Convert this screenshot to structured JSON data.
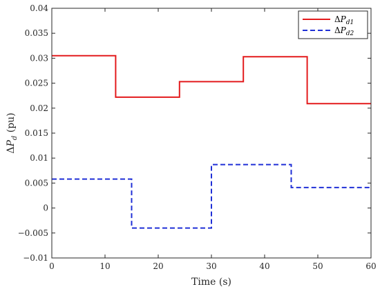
{
  "chart_data": {
    "type": "line",
    "step": true,
    "x_breakpoints_note": "",
    "xlabel": "Time (s)",
    "ylabel": "ΔP_d (pu)",
    "ylabel_parts": {
      "delta": "Δ",
      "var": "P",
      "sub": "d",
      "unit": " (pu)"
    },
    "xlim": [
      0,
      60
    ],
    "ylim": [
      -0.01,
      0.04
    ],
    "xticks": [
      0,
      10,
      20,
      30,
      40,
      50,
      60
    ],
    "xtick_labels": [
      "0",
      "10",
      "20",
      "30",
      "40",
      "50",
      "60"
    ],
    "yticks": [
      -0.01,
      -0.005,
      0,
      0.005,
      0.01,
      0.015,
      0.02,
      0.025,
      0.03,
      0.035,
      0.04
    ],
    "ytick_labels": [
      "−0.01",
      "−0.005",
      "0",
      "0.005",
      "0.01",
      "0.015",
      "0.02",
      "0.025",
      "0.03",
      "0.035",
      "0.04"
    ],
    "grid": false,
    "legend_position": "top-right",
    "series": [
      {
        "name": "ΔP_d1",
        "name_parts": {
          "delta": "Δ",
          "var": "P",
          "sub": "d1"
        },
        "color": "#e31a1c",
        "dash": "solid",
        "x": [
          0,
          12,
          12,
          24,
          24,
          36,
          36,
          48,
          48,
          60
        ],
        "y": [
          0.0305,
          0.0305,
          0.0222,
          0.0222,
          0.0253,
          0.0253,
          0.0303,
          0.0303,
          0.0209,
          0.0209
        ]
      },
      {
        "name": "ΔP_d2",
        "name_parts": {
          "delta": "Δ",
          "var": "P",
          "sub": "d2"
        },
        "color": "#1f2fd6",
        "dash": "dashed",
        "x": [
          0,
          15,
          15,
          30,
          30,
          45,
          45,
          60
        ],
        "y": [
          0.0058,
          0.0058,
          -0.004,
          -0.004,
          0.0087,
          0.0087,
          0.0041,
          0.0041
        ]
      }
    ]
  }
}
